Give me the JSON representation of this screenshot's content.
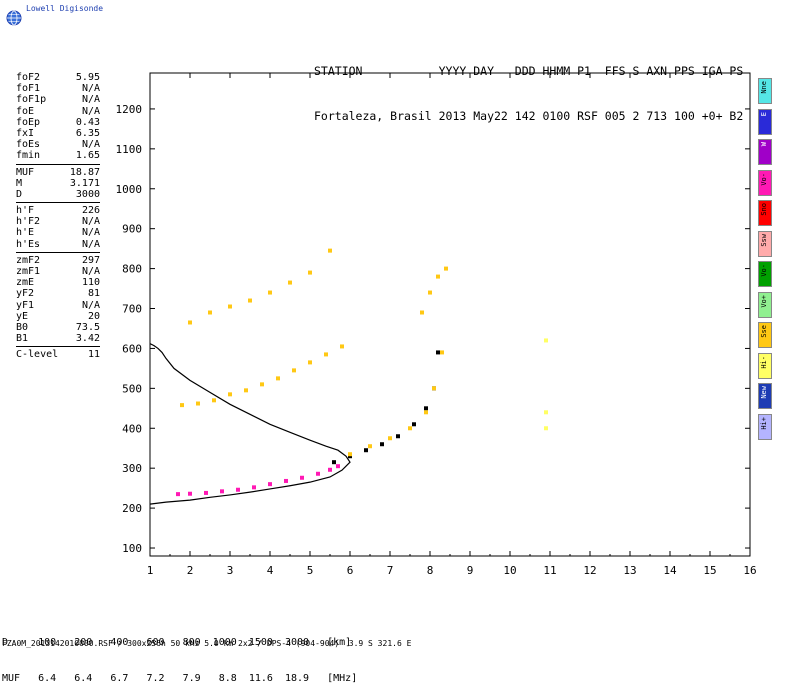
{
  "logo": {
    "text": "Lowell Digisonde",
    "icon": "globe-icon"
  },
  "header": {
    "line1": "STATION           YYYY DAY   DDD HHMM P1  FFS S AXN PPS IGA PS",
    "line2": "Fortaleza, Brasil 2013 May22 142 0100 RSF 005 2 713 100 +0+ B2"
  },
  "params": {
    "group1": [
      {
        "label": "foF2",
        "value": "5.95"
      },
      {
        "label": "foF1",
        "value": "N/A"
      },
      {
        "label": "foF1p",
        "value": "N/A"
      },
      {
        "label": "foE",
        "value": "N/A"
      },
      {
        "label": "foEp",
        "value": "0.43"
      },
      {
        "label": "fxI",
        "value": "6.35"
      },
      {
        "label": "foEs",
        "value": "N/A"
      },
      {
        "label": "fmin",
        "value": "1.65"
      }
    ],
    "group2": [
      {
        "label": "MUF",
        "value": "18.87"
      },
      {
        "label": "M",
        "value": "3.171"
      },
      {
        "label": "D",
        "value": "3000"
      }
    ],
    "group3": [
      {
        "label": "h'F",
        "value": "226"
      },
      {
        "label": "h'F2",
        "value": "N/A"
      },
      {
        "label": "h'E",
        "value": "N/A"
      },
      {
        "label": "h'Es",
        "value": "N/A"
      }
    ],
    "group4": [
      {
        "label": "zmF2",
        "value": "297"
      },
      {
        "label": "zmF1",
        "value": "N/A"
      },
      {
        "label": "zmE",
        "value": "110"
      },
      {
        "label": "yF2",
        "value": "81"
      },
      {
        "label": "yF1",
        "value": "N/A"
      },
      {
        "label": "yE",
        "value": "20"
      },
      {
        "label": "B0",
        "value": "73.5"
      },
      {
        "label": "B1",
        "value": "3.42"
      }
    ],
    "group5": [
      {
        "label": "C-level",
        "value": "11"
      }
    ]
  },
  "legend": [
    {
      "label": "Nne",
      "color": "#55e6e6"
    },
    {
      "label": "E",
      "color": "#2a2ad8"
    },
    {
      "label": "W",
      "color": "#a000c8"
    },
    {
      "label": "Vo-",
      "color": "#ff19b4"
    },
    {
      "label": "Sno",
      "color": "#ff0000"
    },
    {
      "label": "Ssw",
      "color": "#ffaaaa"
    },
    {
      "label": "Vo-",
      "color": "#00a000"
    },
    {
      "label": "Vo+",
      "color": "#90f090"
    },
    {
      "label": "Sse",
      "color": "#ffc814"
    },
    {
      "label": "Hi-",
      "color": "#ffff64"
    },
    {
      "label": "New",
      "color": "#1e3cb4"
    },
    {
      "label": "Hi+",
      "color": "#b4b4ff"
    }
  ],
  "footer": {
    "line1": "D     100   200   400   600   800  1000  1500  3000   [km]",
    "line2": "MUF   6.4   6.4   6.7   7.2   7.9   8.8  11.6  18.9   [MHz]",
    "file": "FZA0M_2013142010000.RSF / 300x256h 50 kHz 5.0 km 2x2 / DPS-4 (904-904)  3.9 S 321.6 E"
  },
  "chart_data": {
    "type": "scatter",
    "title": "",
    "xlabel": "",
    "ylabel": "",
    "xlim": [
      1,
      16
    ],
    "ylim": [
      80,
      1290
    ],
    "x_ticks": [
      1,
      2,
      3,
      4,
      5,
      6,
      7,
      8,
      9,
      10,
      11,
      12,
      13,
      14,
      15,
      16
    ],
    "y_ticks": [
      100,
      200,
      300,
      400,
      500,
      600,
      700,
      800,
      900,
      1000,
      1100,
      1200
    ],
    "profile_line": {
      "x": [
        1.0,
        1.4,
        2.0,
        2.5,
        3.0,
        3.5,
        4.0,
        4.5,
        5.0,
        5.5,
        5.8,
        6.0,
        5.9,
        5.7,
        5.4,
        5.0,
        4.5,
        4.0,
        3.5,
        3.0,
        2.5,
        2.0,
        1.6,
        1.4,
        1.3,
        1.2,
        1.1,
        1.0
      ],
      "y": [
        210,
        215,
        220,
        227,
        233,
        240,
        248,
        256,
        265,
        278,
        295,
        315,
        330,
        345,
        355,
        370,
        390,
        410,
        435,
        460,
        490,
        520,
        550,
        575,
        590,
        600,
        607,
        612
      ]
    },
    "echo_traces": [
      {
        "name": "o-F2 lower",
        "color": "#ff19b4",
        "x": [
          1.7,
          2.0,
          2.4,
          2.8,
          3.2,
          3.6,
          4.0,
          4.4,
          4.8,
          5.2,
          5.5,
          5.7
        ],
        "y": [
          235,
          236,
          238,
          242,
          246,
          252,
          260,
          268,
          276,
          286,
          296,
          305
        ]
      },
      {
        "name": "o-F2 upper",
        "color": "#000000",
        "x": [
          5.6,
          6.0,
          6.4,
          6.8,
          7.2,
          7.6,
          7.9,
          8.1,
          8.2
        ],
        "y": [
          315,
          330,
          345,
          360,
          380,
          410,
          450,
          500,
          590
        ]
      },
      {
        "name": "x-trace",
        "color": "#ffc814",
        "x": [
          6.0,
          6.5,
          7.0,
          7.5,
          7.9,
          8.1,
          8.3
        ],
        "y": [
          335,
          355,
          375,
          400,
          440,
          500,
          590
        ]
      },
      {
        "name": "2F lower",
        "color": "#ffc814",
        "x": [
          1.8,
          2.2,
          2.6,
          3.0,
          3.4,
          3.8,
          4.2,
          4.6,
          5.0,
          5.4,
          5.8
        ],
        "y": [
          458,
          462,
          470,
          485,
          495,
          510,
          525,
          545,
          565,
          585,
          605
        ]
      },
      {
        "name": "3F lower",
        "color": "#ffc814",
        "x": [
          2.0,
          2.5,
          3.0,
          3.5,
          4.0,
          4.5,
          5.0,
          5.5
        ],
        "y": [
          665,
          690,
          705,
          720,
          740,
          765,
          790,
          845
        ]
      },
      {
        "name": "2F upper",
        "color": "#ffc814",
        "x": [
          7.8,
          8.0,
          8.2,
          8.4
        ],
        "y": [
          690,
          740,
          780,
          800
        ]
      },
      {
        "name": "sporadic",
        "color": "#ffff64",
        "x": [
          10.9,
          10.9,
          10.9
        ],
        "y": [
          400,
          440,
          620
        ]
      }
    ]
  }
}
